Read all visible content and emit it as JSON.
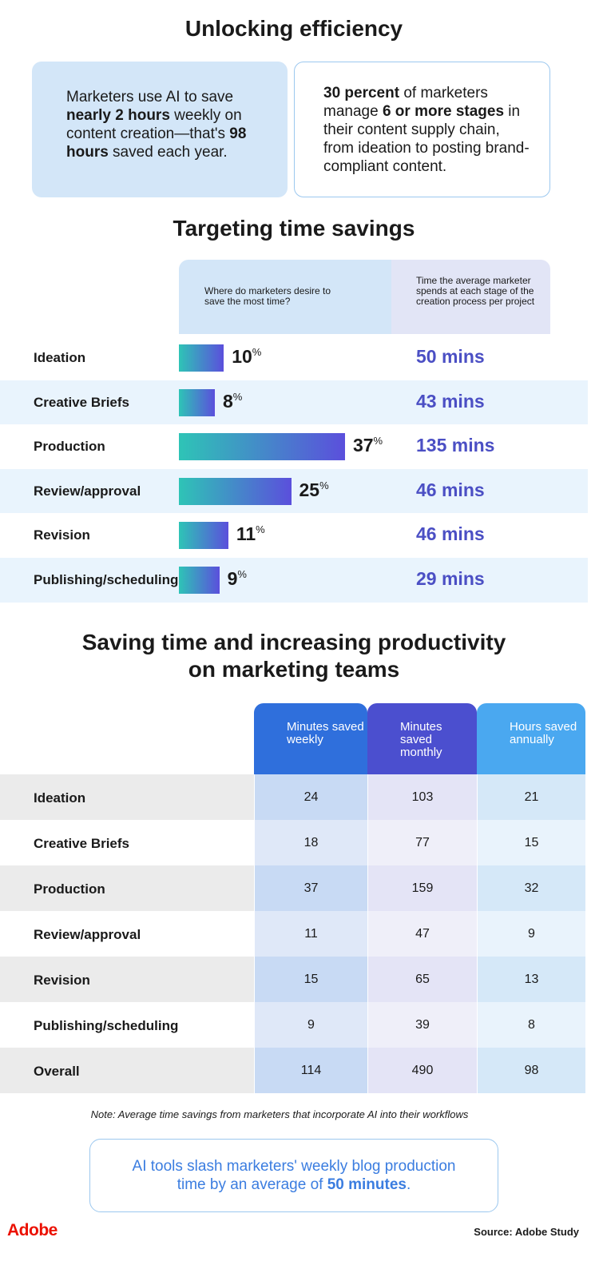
{
  "title": "Unlocking efficiency",
  "stat_cards": [
    {
      "segments": [
        {
          "text": "Marketers use AI to save "
        },
        {
          "text": "nearly 2 hours",
          "bold": true
        },
        {
          "text": " weekly on content creation—that's "
        },
        {
          "text": "98 hours",
          "bold": true
        },
        {
          "text": " saved each year."
        }
      ]
    },
    {
      "segments": [
        {
          "text": "30 percent",
          "bold": true
        },
        {
          "text": " of marketers manage "
        },
        {
          "text": "6 or more stages",
          "bold": true
        },
        {
          "text": " in their content supply chain, from ideation to posting brand-compliant content."
        }
      ]
    }
  ],
  "time_savings": {
    "title": "Targeting time savings",
    "column_headers": [
      "Where do marketers desire to save the most time?",
      "Time the average marketer spends at each stage of the creation process per project"
    ],
    "percent_sign": "%",
    "rows": [
      {
        "stage": "Ideation",
        "desire_percent": 10,
        "time_spent": "50 mins"
      },
      {
        "stage": "Creative Briefs",
        "desire_percent": 8,
        "time_spent": "43 mins"
      },
      {
        "stage": "Production",
        "desire_percent": 37,
        "time_spent": "135 mins"
      },
      {
        "stage": "Review/approval",
        "desire_percent": 25,
        "time_spent": "46 mins"
      },
      {
        "stage": "Revision",
        "desire_percent": 11,
        "time_spent": "46 mins"
      },
      {
        "stage": "Publishing/scheduling",
        "desire_percent": 9,
        "time_spent": "29 mins"
      }
    ]
  },
  "productivity": {
    "title": "Saving time and increasing productivity on marketing teams",
    "column_headers": [
      "Minutes saved weekly",
      "Minutes saved monthly",
      "Hours saved annually"
    ],
    "rows": [
      {
        "stage": "Ideation",
        "values": [
          24,
          103,
          21
        ]
      },
      {
        "stage": "Creative Briefs",
        "values": [
          18,
          77,
          15
        ]
      },
      {
        "stage": "Production",
        "values": [
          37,
          159,
          32
        ]
      },
      {
        "stage": "Review/approval",
        "values": [
          11,
          47,
          9
        ]
      },
      {
        "stage": "Revision",
        "values": [
          15,
          65,
          13
        ]
      },
      {
        "stage": "Publishing/scheduling",
        "values": [
          9,
          39,
          8
        ]
      },
      {
        "stage": "Overall",
        "values": [
          114,
          490,
          98
        ]
      }
    ],
    "note": "Note: Average time savings from marketers that incorporate AI into their workflows"
  },
  "callout": {
    "segments": [
      {
        "text": "AI tools slash marketers' weekly blog production time by an average of "
      },
      {
        "text": "50 minutes",
        "bold": true
      },
      {
        "text": "."
      }
    ]
  },
  "footer": {
    "logo": "Adobe",
    "source": "Source: Adobe Study"
  }
}
